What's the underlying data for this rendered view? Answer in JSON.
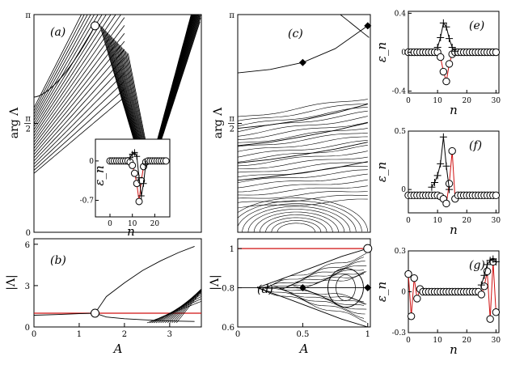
{
  "figure": {
    "panels": [
      {
        "id": "a",
        "label": "(a)"
      },
      {
        "id": "b",
        "label": "(b)"
      },
      {
        "id": "c",
        "label": "(c)"
      },
      {
        "id": "d",
        "label": "(d)"
      },
      {
        "id": "e",
        "label": "(e)"
      },
      {
        "id": "f",
        "label": "(f)"
      },
      {
        "id": "g",
        "label": "(g)"
      }
    ]
  },
  "chart_data": [
    {
      "panel": "a",
      "type": "line",
      "xlabel": "",
      "ylabel": "arg Λ",
      "xlim": [
        0,
        3.7
      ],
      "ylim": [
        0,
        3.1416
      ],
      "y_ticks": [
        "0",
        "π/2",
        "π"
      ],
      "grid": false,
      "marker": {
        "shape": "circle",
        "x": 1.35,
        "y": 2.98
      },
      "inset": {
        "type": "line",
        "xlabel": "n",
        "ylabel": "ε_n",
        "xlim": [
          0,
          26
        ],
        "ylim": [
          -0.85,
          0.3
        ],
        "x_ticks": [
          "0",
          "10",
          "20"
        ],
        "y_ticks": [
          "0",
          "-0.7"
        ],
        "series": [
          {
            "marker": "circle",
            "color": "#d01010",
            "x": [
              0,
              1,
              2,
              3,
              4,
              5,
              6,
              7,
              8,
              9,
              10,
              11,
              12,
              13,
              14,
              15,
              16,
              17,
              18,
              19,
              20,
              21,
              22,
              23,
              24,
              25
            ],
            "values": [
              0,
              0,
              0,
              0,
              0,
              0,
              0,
              0,
              0,
              -0.02,
              -0.08,
              -0.22,
              -0.4,
              -0.72,
              -0.35,
              -0.1,
              -0.02,
              0,
              0,
              0,
              0,
              0,
              0,
              0,
              0,
              0
            ]
          },
          {
            "marker": "plus",
            "color": "#000000",
            "x": [
              9,
              10,
              11,
              12,
              13,
              14,
              15,
              16
            ],
            "values": [
              0.06,
              0.12,
              0.15,
              0.08,
              -0.3,
              -0.62,
              -0.4,
              -0.05
            ]
          }
        ]
      }
    },
    {
      "panel": "b",
      "type": "line",
      "xlabel": "A",
      "ylabel": "|Λ|",
      "xlim": [
        0,
        3.7
      ],
      "ylim": [
        0,
        6.4
      ],
      "x_ticks": [
        "0",
        "1",
        "2",
        "3"
      ],
      "y_ticks": [
        "0",
        "3",
        "6"
      ],
      "reference_line": {
        "y": 1,
        "color": "#d01010"
      },
      "marker": {
        "shape": "circle",
        "x": 1.35,
        "y": 1.0
      },
      "series": [
        {
          "name": "",
          "x": [
            1.35,
            1.6,
            2.0,
            2.4,
            2.8,
            3.2,
            3.55
          ],
          "values": [
            1.0,
            2.2,
            3.2,
            4.1,
            4.8,
            5.4,
            5.85
          ]
        },
        {
          "name": "",
          "x": [
            1.35,
            1.6,
            2.0,
            2.4,
            2.8,
            3.2,
            3.55
          ],
          "values": [
            1.0,
            0.72,
            0.6,
            0.52,
            0.46,
            0.42,
            0.4
          ]
        },
        {
          "name": "",
          "x": [
            0,
            0.5,
            1.0,
            1.35
          ],
          "values": [
            0.85,
            0.9,
            0.96,
            1.0
          ]
        }
      ]
    },
    {
      "panel": "c",
      "type": "line",
      "xlabel": "",
      "ylabel": "arg Λ",
      "xlim": [
        0,
        1.02
      ],
      "ylim": [
        0,
        3.1416
      ],
      "y_ticks": [
        "π/2",
        "π"
      ],
      "markers": [
        {
          "shape": "diamond",
          "x": 0.5,
          "y": 2.45
        },
        {
          "shape": "diamond",
          "x": 1.0,
          "y": 2.98
        }
      ],
      "series": [
        {
          "name": "",
          "x": [
            0,
            0.25,
            0.5,
            0.75,
            1.0
          ],
          "values": [
            2.3,
            2.35,
            2.45,
            2.65,
            2.98
          ]
        },
        {
          "name": "",
          "x": [
            0,
            0.25,
            0.5,
            0.75,
            1.0
          ],
          "values": [
            1.5,
            1.55,
            1.62,
            1.72,
            1.85
          ]
        },
        {
          "name": "",
          "x": [
            0,
            0.25,
            0.5,
            0.75,
            1.0
          ],
          "values": [
            1.25,
            1.3,
            1.38,
            1.47,
            1.58
          ]
        },
        {
          "name": "",
          "x": [
            0,
            0.25,
            0.5,
            0.75,
            1.0
          ],
          "values": [
            1.0,
            1.05,
            1.12,
            1.2,
            1.3
          ]
        },
        {
          "name": "",
          "x": [
            0,
            0.25,
            0.5,
            0.75,
            1.0
          ],
          "values": [
            0.75,
            0.8,
            0.86,
            0.93,
            1.02
          ]
        }
      ]
    },
    {
      "panel": "d",
      "type": "line",
      "xlabel": "A",
      "ylabel": "|Λ|",
      "xlim": [
        0,
        1.02
      ],
      "ylim": [
        0.6,
        1.05
      ],
      "x_ticks": [
        "0",
        "0.5",
        "1"
      ],
      "y_ticks": [
        "0.6",
        "0.8",
        "1"
      ],
      "reference_line": {
        "y": 1,
        "color": "#d01010"
      },
      "markers": [
        {
          "shape": "diamond",
          "x": 0.5,
          "y": 0.8
        },
        {
          "shape": "diamond",
          "x": 1.0,
          "y": 0.8
        },
        {
          "shape": "circle",
          "x": 1.0,
          "y": 1.0
        }
      ],
      "series": [
        {
          "name": "",
          "x": [
            0,
            0.5,
            1.0
          ],
          "values": [
            0.8,
            0.8,
            0.8
          ]
        },
        {
          "name": "",
          "x": [
            0.15,
            0.4,
            0.6,
            0.8,
            1.0
          ],
          "values": [
            0.8,
            0.86,
            0.91,
            0.96,
            1.0
          ]
        },
        {
          "name": "",
          "x": [
            0.15,
            0.4,
            0.6,
            0.8,
            1.0
          ],
          "values": [
            0.8,
            0.74,
            0.69,
            0.64,
            0.6
          ]
        }
      ]
    },
    {
      "panel": "e",
      "type": "line",
      "xlabel": "n",
      "ylabel": "ε_n",
      "xlim": [
        0,
        31
      ],
      "ylim": [
        -0.42,
        0.42
      ],
      "x_ticks": [
        "0",
        "10",
        "20",
        "30"
      ],
      "y_ticks": [
        "-0.4",
        "0",
        "0.4"
      ],
      "series": [
        {
          "marker": "circle",
          "color": "#d01010",
          "x": [
            0,
            1,
            2,
            3,
            4,
            5,
            6,
            7,
            8,
            9,
            10,
            11,
            12,
            13,
            14,
            15,
            16,
            17,
            18,
            19,
            20,
            21,
            22,
            23,
            24,
            25,
            26,
            27,
            28,
            29,
            30
          ],
          "values": [
            0,
            0,
            0,
            0,
            0,
            0,
            0,
            0,
            0,
            0,
            0,
            -0.05,
            -0.2,
            -0.3,
            -0.12,
            -0.02,
            0,
            0,
            0,
            0,
            0,
            0,
            0,
            0,
            0,
            0,
            0,
            0,
            0,
            0,
            0
          ]
        },
        {
          "marker": "plus",
          "color": "#000000",
          "x": [
            10,
            11,
            12,
            13,
            14,
            15,
            16
          ],
          "values": [
            0.05,
            0.15,
            0.3,
            0.26,
            0.14,
            0.05,
            0.01
          ]
        }
      ]
    },
    {
      "panel": "f",
      "type": "line",
      "xlabel": "n",
      "ylabel": "ε_n",
      "xlim": [
        0,
        31
      ],
      "ylim": [
        -0.2,
        0.5
      ],
      "x_ticks": [
        "0",
        "10",
        "20",
        "30"
      ],
      "y_ticks": [
        "0",
        "0.5"
      ],
      "series": [
        {
          "marker": "circle",
          "color": "#d01010",
          "x": [
            0,
            1,
            2,
            3,
            4,
            5,
            6,
            7,
            8,
            9,
            10,
            11,
            12,
            13,
            14,
            15,
            16,
            17,
            18,
            19,
            20,
            21,
            22,
            23,
            24,
            25,
            26,
            27,
            28,
            29,
            30
          ],
          "values": [
            -0.05,
            -0.05,
            -0.05,
            -0.05,
            -0.05,
            -0.05,
            -0.05,
            -0.05,
            -0.05,
            -0.05,
            -0.05,
            -0.06,
            -0.08,
            -0.12,
            0.05,
            0.33,
            -0.08,
            -0.05,
            -0.05,
            -0.05,
            -0.05,
            -0.05,
            -0.05,
            -0.05,
            -0.05,
            -0.05,
            -0.05,
            -0.05,
            -0.05,
            -0.05,
            -0.05
          ]
        },
        {
          "marker": "plus",
          "color": "#000000",
          "x": [
            8,
            9,
            10,
            11,
            12,
            13,
            14
          ],
          "values": [
            0.02,
            0.06,
            0.12,
            0.22,
            0.45,
            0.2,
            0.0
          ]
        }
      ]
    },
    {
      "panel": "g",
      "type": "line",
      "xlabel": "n",
      "ylabel": "ε_n",
      "xlim": [
        0,
        31
      ],
      "ylim": [
        -0.3,
        0.3
      ],
      "x_ticks": [
        "0",
        "10",
        "20",
        "30"
      ],
      "y_ticks": [
        "-0.3",
        "0",
        "0.3"
      ],
      "series": [
        {
          "marker": "circle",
          "color": "#d01010",
          "x": [
            0,
            1,
            2,
            3,
            4,
            5,
            6,
            7,
            8,
            9,
            10,
            11,
            12,
            13,
            14,
            15,
            16,
            17,
            18,
            19,
            20,
            21,
            22,
            23,
            24,
            25,
            26,
            27,
            28,
            29,
            30
          ],
          "values": [
            0.13,
            -0.18,
            0.1,
            -0.05,
            0.02,
            0,
            0,
            0,
            0,
            0,
            0,
            0,
            0,
            0,
            0,
            0,
            0,
            0,
            0,
            0,
            0,
            0,
            0,
            0,
            0,
            -0.02,
            0.04,
            0.15,
            -0.2,
            0.22,
            -0.15
          ]
        },
        {
          "marker": "plus",
          "color": "#000000",
          "x": [
            25,
            26,
            27,
            28,
            29,
            30
          ],
          "values": [
            0.05,
            0.12,
            0.2,
            0.23,
            0.24,
            0.22
          ]
        }
      ]
    }
  ]
}
